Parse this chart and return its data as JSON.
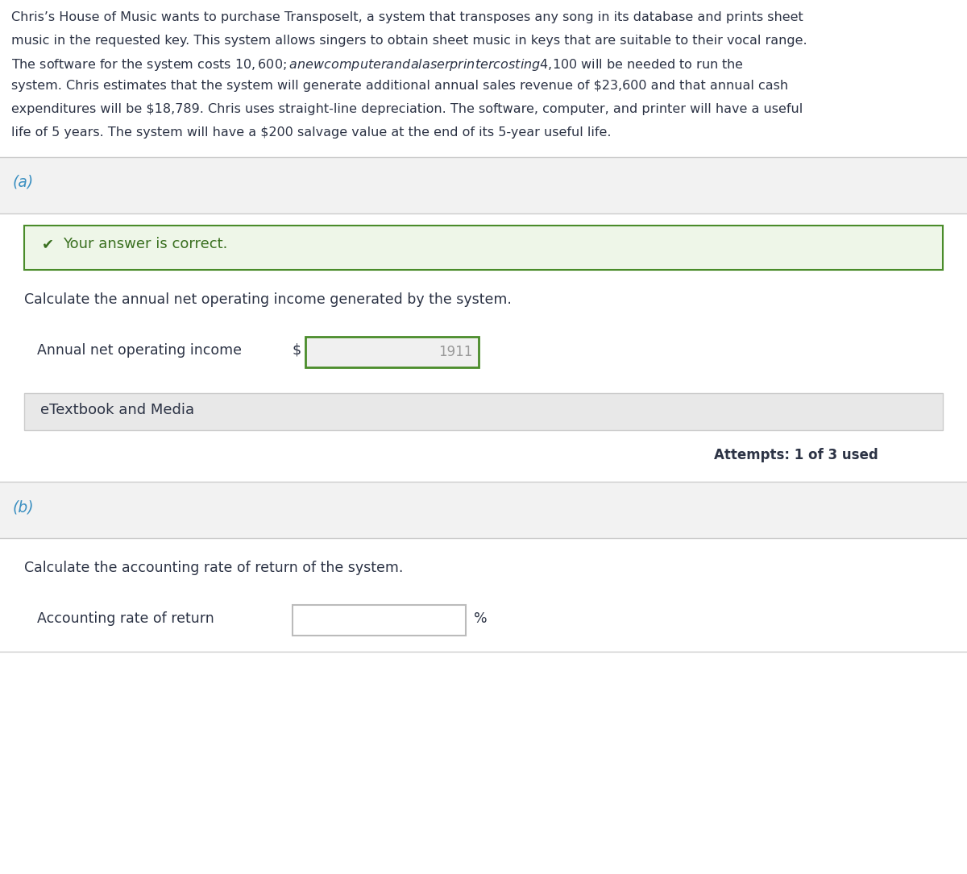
{
  "bg_color": "#ffffff",
  "section_bg": "#f2f2f2",
  "correct_box_bg": "#eef6e8",
  "correct_box_border": "#4a8c2a",
  "correct_text_color": "#3a7020",
  "checkmark_color": "#3a7020",
  "part_label_color": "#3a8fc1",
  "text_color": "#2c3345",
  "input_border_color_green": "#4a8c2a",
  "input_border_color_plain": "#bbbbbb",
  "input_bg": "#f0f0f0",
  "etextbook_bg": "#e8e8e8",
  "etextbook_border": "#cccccc",
  "divider_color": "#cccccc",
  "main_text_lines": [
    "Chris’s House of Music wants to purchase TransposeIt, a system that transposes any song in its database and prints sheet",
    "music in the requested key. This system allows singers to obtain sheet music in keys that are suitable to their vocal range.",
    "The software for the system costs $10,600; a new computer and a laser printer costing $4,100 will be needed to run the",
    "system. Chris estimates that the system will generate additional annual sales revenue of $23,600 and that annual cash",
    "expenditures will be $18,789. Chris uses straight-line depreciation. The software, computer, and printer will have a useful",
    "life of 5 years. The system will have a $200 salvage value at the end of its 5-year useful life."
  ],
  "part_a_label": "(a)",
  "correct_message": "Your answer is correct.",
  "calc_a_text": "Calculate the annual net operating income generated by the system.",
  "label_a": "Annual net operating income",
  "dollar_sign": "$",
  "value_a": "1911",
  "etextbook_text": "eTextbook and Media",
  "attempts_text": "Attempts: 1 of 3 used",
  "part_b_label": "(b)",
  "calc_b_text": "Calculate the accounting rate of return of the system.",
  "label_b": "Accounting rate of return",
  "percent_sign": "%"
}
